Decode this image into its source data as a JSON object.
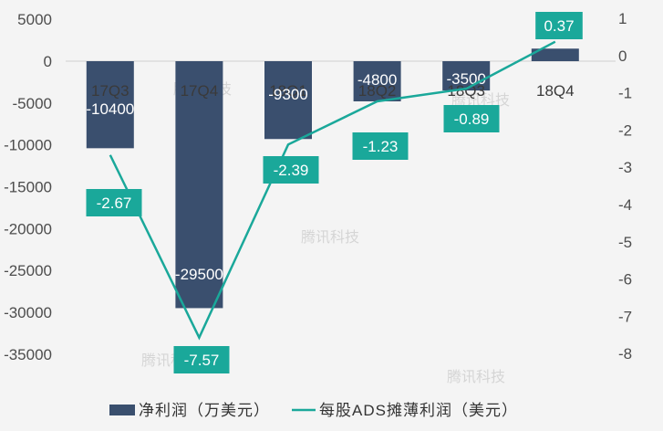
{
  "chart_data": {
    "type": "bar+line",
    "categories": [
      "17Q3",
      "17Q4",
      "18Q1",
      "18Q2",
      "18Q3",
      "18Q4"
    ],
    "series": [
      {
        "name": "净利润（万美元）",
        "type": "bar",
        "axis": "left",
        "values": [
          -10400,
          -29500,
          -9300,
          -4800,
          -3500,
          1500
        ],
        "labels": [
          "-10400",
          "-29500",
          "-9300",
          "-4800",
          "-3500",
          ""
        ]
      },
      {
        "name": "每股ADS摊薄利润（美元）",
        "type": "line",
        "axis": "right",
        "values": [
          -2.67,
          -7.57,
          -2.39,
          -1.23,
          -0.89,
          0.37
        ],
        "labels": [
          "-2.67",
          "-7.57",
          "-2.39",
          "-1.23",
          "-0.89",
          "0.37"
        ]
      }
    ],
    "left_axis": {
      "ylim": [
        -40000,
        5000
      ],
      "ticks": [
        5000,
        0,
        -5000,
        -10000,
        -15000,
        -20000,
        -25000,
        -30000,
        -35000
      ]
    },
    "right_axis": {
      "ylim": [
        -9,
        1
      ],
      "ticks": [
        1,
        0,
        -1,
        -2,
        -3,
        -4,
        -5,
        -6,
        -7,
        -8
      ]
    },
    "legend_position": "bottom-center",
    "grid": false,
    "colors": {
      "bar": "#3a4f6e",
      "line": "#1aa89a",
      "label_box": "#1aa89a",
      "background": "#f4f4f4"
    }
  },
  "watermark": "腾讯科技"
}
